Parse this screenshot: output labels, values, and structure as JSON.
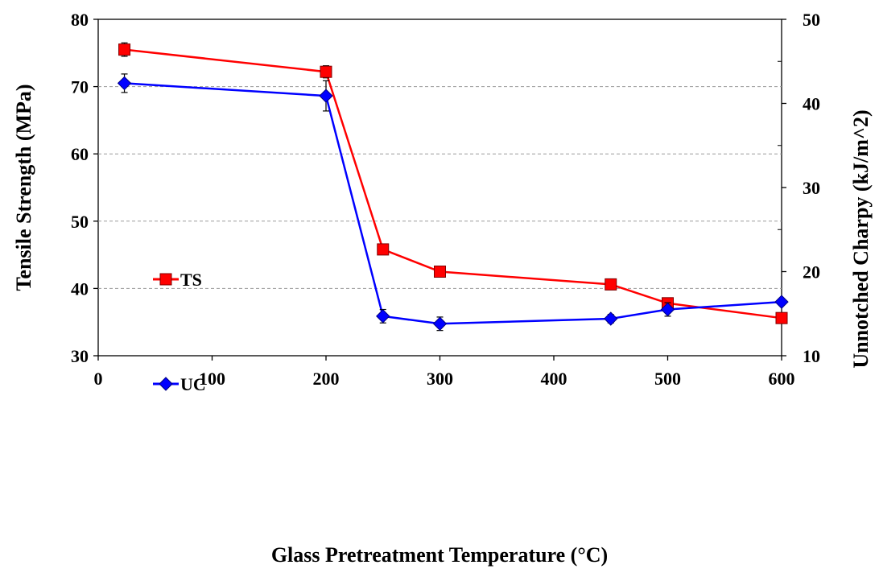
{
  "chart_data": {
    "type": "line",
    "title": "",
    "xlabel": "Glass Pretreatment Temperature (°C)",
    "ylabel": "Tensile Strength (MPa)",
    "y2label": "Unnotched Charpy (kJ/m^2)",
    "xlim": [
      0,
      600
    ],
    "ylim": [
      30,
      80
    ],
    "y2lim": [
      10,
      50
    ],
    "xticks": [
      0,
      100,
      200,
      300,
      400,
      500,
      600
    ],
    "yticks": [
      30,
      40,
      50,
      60,
      70,
      80
    ],
    "y2ticks": [
      10,
      20,
      30,
      40,
      50
    ],
    "grid": "horizontal dashed",
    "legend_position": "left-middle",
    "series": [
      {
        "name": "TS",
        "axis": "left",
        "color": "#ff0000",
        "marker": "square",
        "x": [
          23,
          200,
          250,
          300,
          450,
          500,
          600
        ],
        "values": [
          75.5,
          72.2,
          45.8,
          42.5,
          40.6,
          37.8,
          35.6
        ],
        "errors": [
          1.0,
          0.9,
          0.6,
          0.6,
          0.4,
          0.5,
          0.3
        ]
      },
      {
        "name": "UC",
        "axis": "right",
        "color": "#0000ff",
        "marker": "diamond",
        "x": [
          23,
          200,
          250,
          300,
          450,
          500,
          600
        ],
        "values": [
          42.4,
          40.9,
          14.7,
          13.8,
          14.4,
          15.5,
          16.4
        ],
        "errors": [
          1.1,
          1.8,
          0.8,
          0.8,
          0.5,
          0.8,
          0.3
        ]
      }
    ]
  }
}
